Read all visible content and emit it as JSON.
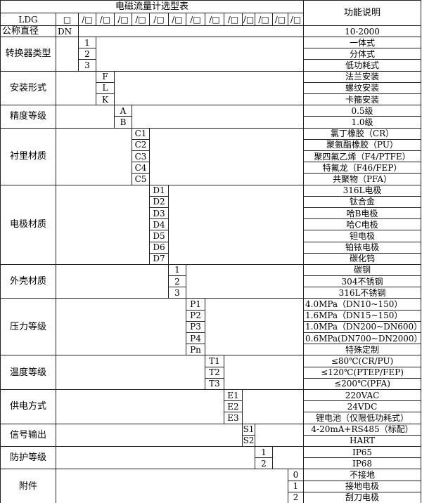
{
  "title": "电磁流量计选型表",
  "function_header": "功能说明",
  "model_prefix": "LDG",
  "model_boxes": [
    "□",
    "/□",
    "/□",
    "/□",
    "/□",
    "/□",
    "/□",
    "/□",
    "/□",
    "/□",
    "/□",
    "/□",
    "/□",
    "/□"
  ],
  "nominal": {
    "label": "公称直径",
    "code": "DN",
    "desc": "10-2000"
  },
  "groups": [
    {
      "label": "转换器类型",
      "col": 1,
      "options": [
        {
          "code": "1",
          "desc": "一体式"
        },
        {
          "code": "2",
          "desc": "分体式"
        },
        {
          "code": "3",
          "desc": "低功耗式"
        }
      ]
    },
    {
      "label": "安装形式",
      "col": 2,
      "options": [
        {
          "code": "F",
          "desc": "法兰安装"
        },
        {
          "code": "L",
          "desc": "螺纹安装"
        },
        {
          "code": "K",
          "desc": "卡箍安装"
        }
      ]
    },
    {
      "label": "精度等级",
      "col": 3,
      "options": [
        {
          "code": "A",
          "desc": "0.5级"
        },
        {
          "code": "B",
          "desc": "1.0级"
        }
      ]
    },
    {
      "label": "衬里材质",
      "col": 4,
      "options": [
        {
          "code": "C1",
          "desc": "氯丁橡胶（CR）"
        },
        {
          "code": "C2",
          "desc": "聚氨酯橡胶（PU）"
        },
        {
          "code": "C3",
          "desc": "聚四氟乙烯（F4/PTFE）"
        },
        {
          "code": "C4",
          "desc": "特氟龙（F46/FEP）"
        },
        {
          "code": "C5",
          "desc": "共聚物（PFA）"
        }
      ]
    },
    {
      "label": "电极材质",
      "col": 5,
      "options": [
        {
          "code": "D1",
          "desc": "316L电极"
        },
        {
          "code": "D2",
          "desc": "钛合金"
        },
        {
          "code": "D3",
          "desc": "哈B电极"
        },
        {
          "code": "D4",
          "desc": "哈C电极"
        },
        {
          "code": "D5",
          "desc": "钽电极"
        },
        {
          "code": "D6",
          "desc": "铂铱电极"
        },
        {
          "code": "D7",
          "desc": "碳化钨"
        }
      ]
    },
    {
      "label": "外壳材质",
      "col": 6,
      "options": [
        {
          "code": "1",
          "desc": "碳钢"
        },
        {
          "code": "2",
          "desc": "304不锈钢"
        },
        {
          "code": "3",
          "desc": "316L不锈钢"
        }
      ]
    },
    {
      "label": "压力等级",
      "col": 7,
      "options": [
        {
          "code": "P1",
          "desc": "4.0MPa（DN10~150）",
          "left": true
        },
        {
          "code": "P2",
          "desc": "1.6MPa（DN15~150）",
          "left": true
        },
        {
          "code": "P3",
          "desc": "1.0MPa（DN200~DN600）",
          "left": true
        },
        {
          "code": "P4",
          "desc": "0.6MPa(DN700~DN2000）",
          "left": true
        },
        {
          "code": "Pn",
          "desc": "特殊定制"
        }
      ]
    },
    {
      "label": "温度等级",
      "col": 8,
      "options": [
        {
          "code": "T1",
          "desc": "≤80℃(CR/PU)"
        },
        {
          "code": "T2",
          "desc": "≤120℃(PTEP/FEP)"
        },
        {
          "code": "T3",
          "desc": "≤200℃(PFA)"
        }
      ]
    },
    {
      "label": "供电方式",
      "col": 9,
      "options": [
        {
          "code": "E1",
          "desc": "220VAC"
        },
        {
          "code": "E2",
          "desc": "24VDC"
        },
        {
          "code": "E3",
          "desc": "锂电池（仅限低功耗式）"
        }
      ]
    },
    {
      "label": "信号输出",
      "col": 10,
      "options": [
        {
          "code": "S1",
          "desc": "4-20mA+RS485（标配）"
        },
        {
          "code": "S2",
          "desc": "HART"
        }
      ]
    },
    {
      "label": "防护等级",
      "col": 11,
      "options": [
        {
          "code": "1",
          "desc": "IP65"
        },
        {
          "code": "2",
          "desc": "IP68"
        }
      ]
    },
    {
      "label": "附件",
      "col": 13,
      "options": [
        {
          "code": "0",
          "desc": "不接地"
        },
        {
          "code": "1",
          "desc": "接地电极"
        },
        {
          "code": "2",
          "desc": "刮刀电极"
        }
      ]
    }
  ]
}
